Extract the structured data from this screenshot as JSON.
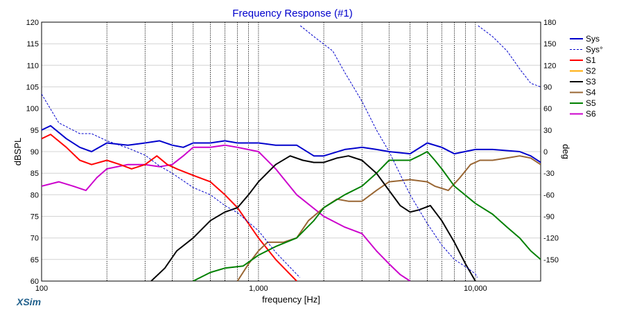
{
  "chart_data": {
    "type": "line",
    "title": "Frequency Response (#1)",
    "xlabel": "frequency [Hz]",
    "ylabel_left": "dBSPL",
    "ylabel_right": "deg",
    "x_scale": "log",
    "xlim": [
      100,
      20000
    ],
    "ylim_left": [
      60,
      120
    ],
    "ylim_right": [
      -180,
      180
    ],
    "x_ticks": [
      100,
      1000,
      10000
    ],
    "x_tick_labels": [
      "100",
      "1,000",
      "10,000"
    ],
    "y_ticks_left": [
      60,
      65,
      70,
      75,
      80,
      85,
      90,
      95,
      100,
      105,
      110,
      115,
      120
    ],
    "y_ticks_right": [
      -150,
      -120,
      -90,
      -60,
      -30,
      0,
      30,
      60,
      90,
      120,
      150,
      180
    ],
    "grid": true,
    "watermark": "XSim",
    "legend_position": "right",
    "series": [
      {
        "name": "Sys",
        "axis": "left",
        "color": "#0000cc",
        "style": "solid",
        "points": [
          [
            100,
            95
          ],
          [
            110,
            96
          ],
          [
            130,
            93
          ],
          [
            150,
            91
          ],
          [
            170,
            90
          ],
          [
            200,
            92
          ],
          [
            250,
            91.5
          ],
          [
            300,
            92
          ],
          [
            350,
            92.5
          ],
          [
            400,
            91.5
          ],
          [
            450,
            91
          ],
          [
            500,
            92
          ],
          [
            600,
            92
          ],
          [
            700,
            92.5
          ],
          [
            800,
            92
          ],
          [
            1000,
            92
          ],
          [
            1200,
            91.5
          ],
          [
            1500,
            91.5
          ],
          [
            1800,
            89
          ],
          [
            2000,
            89
          ],
          [
            2500,
            90.5
          ],
          [
            3000,
            91
          ],
          [
            3500,
            90.5
          ],
          [
            4000,
            90
          ],
          [
            5000,
            89.5
          ],
          [
            6000,
            92
          ],
          [
            7000,
            91
          ],
          [
            8000,
            89.5
          ],
          [
            10000,
            90.5
          ],
          [
            12000,
            90.5
          ],
          [
            16000,
            90
          ],
          [
            18000,
            89
          ],
          [
            20000,
            87.5
          ]
        ]
      },
      {
        "name": "Sys°",
        "axis": "right",
        "color": "#0000cc",
        "style": "dashed",
        "points": [
          [
            100,
            80
          ],
          [
            120,
            40
          ],
          [
            150,
            25
          ],
          [
            170,
            25
          ],
          [
            200,
            15
          ],
          [
            250,
            5
          ],
          [
            300,
            -5
          ],
          [
            350,
            -20
          ],
          [
            400,
            -30
          ],
          [
            500,
            -50
          ],
          [
            600,
            -60
          ],
          [
            700,
            -75
          ],
          [
            800,
            -85
          ],
          [
            1000,
            -110
          ],
          [
            1200,
            -140
          ],
          [
            1550,
            -175
          ],
          [
            1560,
            175
          ],
          [
            1800,
            160
          ],
          [
            2200,
            140
          ],
          [
            2500,
            110
          ],
          [
            3000,
            70
          ],
          [
            3500,
            30
          ],
          [
            4000,
            0
          ],
          [
            5000,
            -60
          ],
          [
            6000,
            -100
          ],
          [
            7000,
            -130
          ],
          [
            8000,
            -150
          ],
          [
            9000,
            -160
          ],
          [
            10000,
            -170
          ],
          [
            10200,
            -175
          ],
          [
            10300,
            175
          ],
          [
            12000,
            160
          ],
          [
            14000,
            140
          ],
          [
            16000,
            115
          ],
          [
            18000,
            95
          ],
          [
            20000,
            90
          ]
        ]
      },
      {
        "name": "S1",
        "axis": "left",
        "color": "#ff0000",
        "style": "solid",
        "points": [
          [
            100,
            93
          ],
          [
            110,
            94
          ],
          [
            130,
            91
          ],
          [
            150,
            88
          ],
          [
            170,
            87
          ],
          [
            200,
            88
          ],
          [
            230,
            87
          ],
          [
            260,
            86
          ],
          [
            300,
            87
          ],
          [
            340,
            89
          ],
          [
            380,
            87
          ],
          [
            420,
            86
          ],
          [
            500,
            84.5
          ],
          [
            600,
            83
          ],
          [
            700,
            80
          ],
          [
            800,
            77
          ],
          [
            1000,
            70
          ],
          [
            1200,
            65
          ],
          [
            1500,
            60
          ]
        ]
      },
      {
        "name": "S2",
        "axis": "left",
        "color": "#ffaa00",
        "style": "solid",
        "points": []
      },
      {
        "name": "S3",
        "axis": "left",
        "color": "#000000",
        "style": "solid",
        "points": [
          [
            320,
            60
          ],
          [
            370,
            63
          ],
          [
            420,
            67
          ],
          [
            500,
            70
          ],
          [
            600,
            74
          ],
          [
            700,
            76
          ],
          [
            800,
            77
          ],
          [
            900,
            80
          ],
          [
            1000,
            83
          ],
          [
            1200,
            87
          ],
          [
            1400,
            89
          ],
          [
            1600,
            88
          ],
          [
            1800,
            87.5
          ],
          [
            2000,
            87.5
          ],
          [
            2300,
            88.5
          ],
          [
            2600,
            89
          ],
          [
            3000,
            88
          ],
          [
            3500,
            85
          ],
          [
            4000,
            81
          ],
          [
            4500,
            77.5
          ],
          [
            5000,
            76
          ],
          [
            5500,
            76.5
          ],
          [
            6200,
            77.5
          ],
          [
            7000,
            74
          ],
          [
            8000,
            69
          ],
          [
            9000,
            64
          ],
          [
            10000,
            60
          ]
        ]
      },
      {
        "name": "S4",
        "axis": "left",
        "color": "#996633",
        "style": "solid",
        "points": [
          [
            800,
            60
          ],
          [
            900,
            64
          ],
          [
            1000,
            67
          ],
          [
            1100,
            69
          ],
          [
            1300,
            69
          ],
          [
            1500,
            70
          ],
          [
            1700,
            74
          ],
          [
            2000,
            77
          ],
          [
            2300,
            79
          ],
          [
            2600,
            78.5
          ],
          [
            3000,
            78.5
          ],
          [
            3500,
            81
          ],
          [
            4000,
            83
          ],
          [
            5000,
            83.5
          ],
          [
            6000,
            83
          ],
          [
            6500,
            82
          ],
          [
            7500,
            81
          ],
          [
            8500,
            84
          ],
          [
            9500,
            87
          ],
          [
            10500,
            88
          ],
          [
            12000,
            88
          ],
          [
            14000,
            88.5
          ],
          [
            16000,
            89
          ],
          [
            18000,
            88.5
          ],
          [
            20000,
            87
          ]
        ]
      },
      {
        "name": "S5",
        "axis": "left",
        "color": "#008000",
        "style": "solid",
        "points": [
          [
            500,
            60
          ],
          [
            600,
            62
          ],
          [
            700,
            63
          ],
          [
            850,
            63.5
          ],
          [
            1000,
            66
          ],
          [
            1200,
            68
          ],
          [
            1500,
            70
          ],
          [
            1800,
            74
          ],
          [
            2000,
            77
          ],
          [
            2500,
            80
          ],
          [
            3000,
            82
          ],
          [
            3500,
            85
          ],
          [
            4000,
            88
          ],
          [
            4500,
            88
          ],
          [
            5000,
            88
          ],
          [
            5500,
            89
          ],
          [
            6000,
            90
          ],
          [
            6500,
            88
          ],
          [
            7000,
            86
          ],
          [
            8000,
            82
          ],
          [
            10000,
            78
          ],
          [
            12000,
            75.5
          ],
          [
            14000,
            72.5
          ],
          [
            16000,
            70
          ],
          [
            18000,
            67
          ],
          [
            20000,
            65
          ]
        ]
      },
      {
        "name": "S6",
        "axis": "left",
        "color": "#cc00cc",
        "style": "solid",
        "points": [
          [
            100,
            82
          ],
          [
            120,
            83
          ],
          [
            140,
            82
          ],
          [
            160,
            81
          ],
          [
            180,
            84
          ],
          [
            200,
            86
          ],
          [
            250,
            87
          ],
          [
            300,
            87
          ],
          [
            350,
            86.5
          ],
          [
            400,
            87
          ],
          [
            450,
            89
          ],
          [
            500,
            91
          ],
          [
            600,
            91
          ],
          [
            700,
            91.5
          ],
          [
            800,
            91
          ],
          [
            1000,
            90
          ],
          [
            1200,
            86
          ],
          [
            1500,
            80
          ],
          [
            2000,
            75
          ],
          [
            2500,
            72.5
          ],
          [
            3000,
            71
          ],
          [
            3500,
            67
          ],
          [
            4000,
            64
          ],
          [
            4500,
            61.5
          ],
          [
            5000,
            60
          ]
        ]
      }
    ]
  }
}
